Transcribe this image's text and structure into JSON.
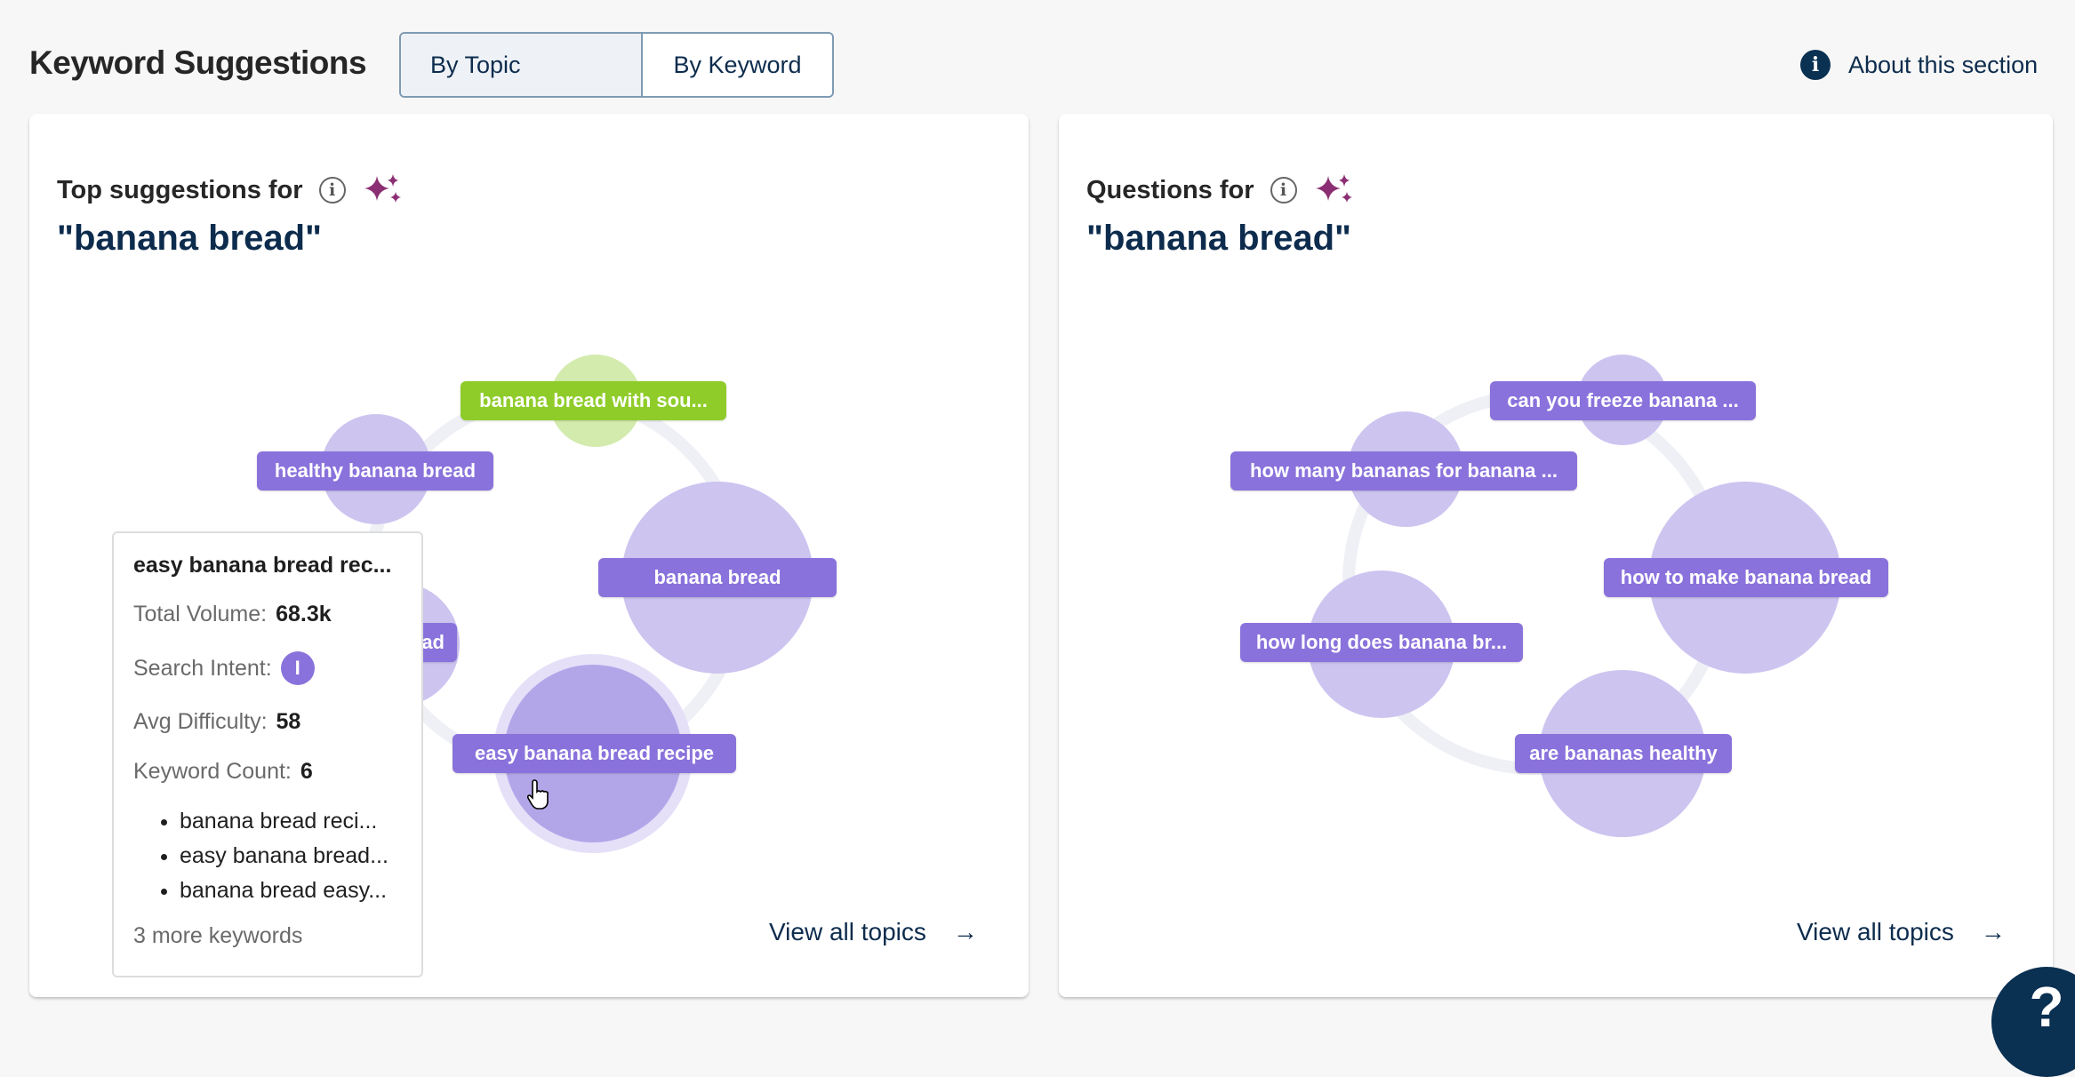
{
  "header": {
    "title": "Keyword Suggestions",
    "tabs": [
      {
        "label": "By Topic",
        "selected": true
      },
      {
        "label": "By Keyword",
        "selected": false
      }
    ],
    "about_label": "About this section",
    "about_icon": "info-icon"
  },
  "colors": {
    "accent": "#8a72dc",
    "bubble": "#cdc4f0",
    "bubble_hover": "#b3a6e8",
    "green": "#8fcc2a",
    "green_bubble": "#d3ebad",
    "navy": "#0d2c4d",
    "sparkle": "#8b2e73"
  },
  "topics_card": {
    "title": "Top suggestions for",
    "query": "\"banana bread\"",
    "bubbles": [
      {
        "label": "banana bread with sou...",
        "color": "green"
      },
      {
        "label": "healthy banana bread"
      },
      {
        "label": "banana bread"
      },
      {
        "label": "easy banana bread recipe",
        "hovered": true
      },
      {
        "label": "ad"
      }
    ],
    "view_all": "View all topics",
    "tooltip": {
      "title": "easy banana bread rec...",
      "volume_label": "Total Volume:",
      "volume": "68.3k",
      "intent_label": "Search Intent:",
      "intent": "I",
      "difficulty_label": "Avg Difficulty:",
      "difficulty": "58",
      "count_label": "Keyword Count:",
      "count": "6",
      "keywords": [
        "banana bread reci...",
        "easy banana bread...",
        "banana bread easy..."
      ],
      "more": "3 more keywords"
    }
  },
  "questions_card": {
    "title": "Questions for",
    "query": "\"banana bread\"",
    "bubbles": [
      {
        "label": "can you freeze banana ..."
      },
      {
        "label": "how many bananas for banana ..."
      },
      {
        "label": "how to make banana bread"
      },
      {
        "label": "how long does banana br..."
      },
      {
        "label": "are bananas healthy"
      }
    ],
    "view_all": "View all topics"
  },
  "help_label": "?"
}
